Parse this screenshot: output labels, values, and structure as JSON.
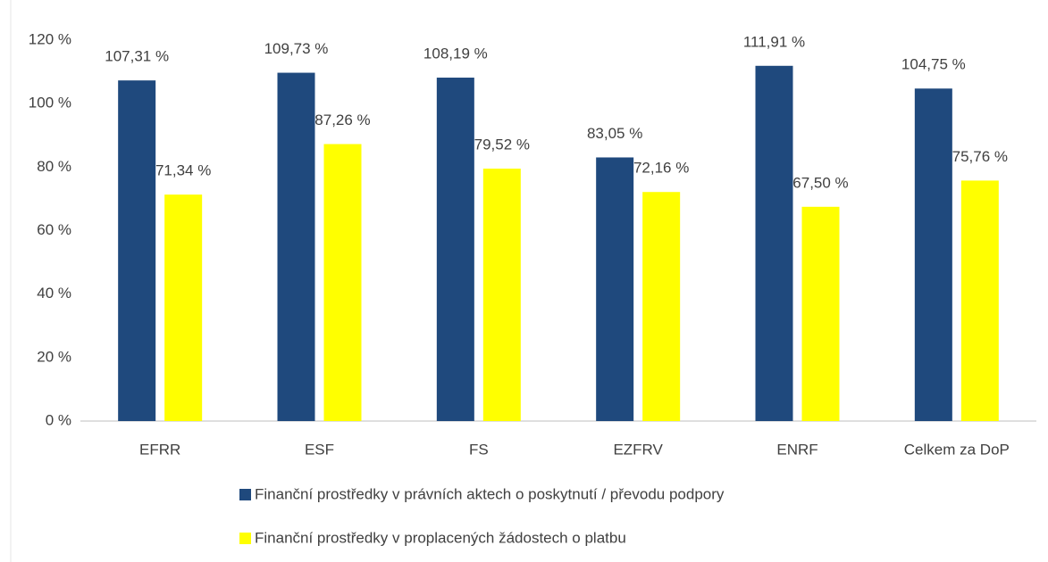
{
  "chart_data": {
    "type": "bar",
    "categories": [
      "EFRR",
      "ESF",
      "FS",
      "EZFRV",
      "ENRF",
      "Celkem za DoP"
    ],
    "series": [
      {
        "name": "Finanční prostředky v právních aktech o poskytnutí / převodu podpory",
        "color": "#1f497d",
        "values": [
          107.31,
          109.73,
          108.19,
          83.05,
          111.91,
          104.75
        ],
        "value_labels": [
          "107,31 %",
          "109,73 %",
          "108,19 %",
          "83,05 %",
          "111,91 %",
          "104,75 %"
        ]
      },
      {
        "name": "Finanční prostředky v proplacených žádostech o platbu",
        "color": "#ffff00",
        "values": [
          71.34,
          87.26,
          79.52,
          72.16,
          67.5,
          75.76
        ],
        "value_labels": [
          "71,34 %",
          "87,26 %",
          "79,52 %",
          "72,16 %",
          "67,50 %",
          "75,76 %"
        ]
      }
    ],
    "ylim": [
      0,
      120
    ],
    "yticks": [
      {
        "value": 0,
        "label": "0 %"
      },
      {
        "value": 20,
        "label": "20 %"
      },
      {
        "value": 40,
        "label": "40 %"
      },
      {
        "value": 60,
        "label": "60 %"
      },
      {
        "value": 80,
        "label": "80 %"
      },
      {
        "value": 100,
        "label": "100 %"
      },
      {
        "value": 120,
        "label": "120 %"
      }
    ],
    "grid": false,
    "legend": "bottom"
  }
}
